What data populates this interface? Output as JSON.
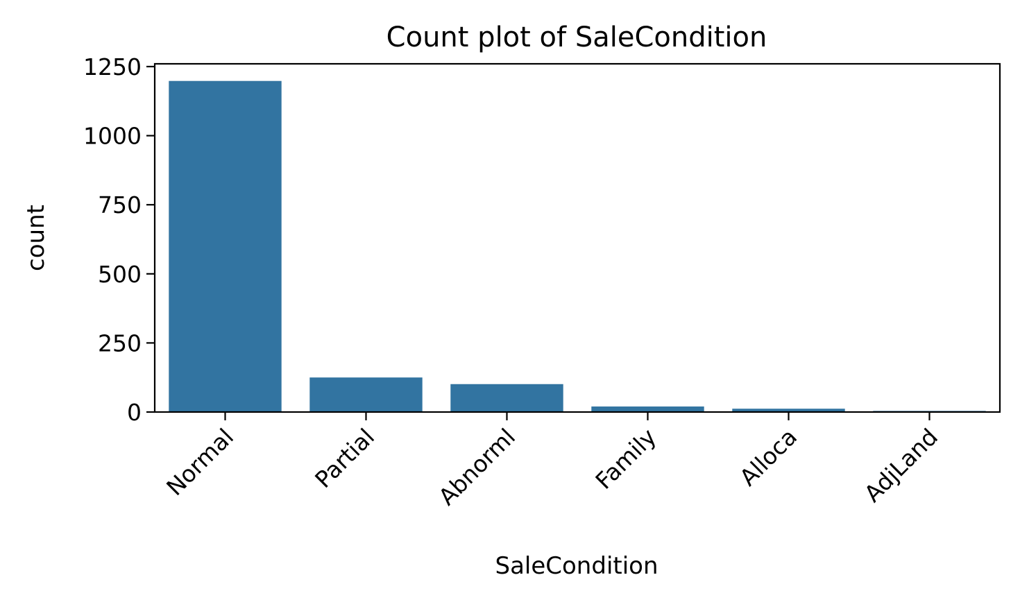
{
  "colors": {
    "bar": "#3274a1",
    "axis": "#000000",
    "background": "#ffffff"
  },
  "chart_data": {
    "type": "bar",
    "title": "Count plot of SaleCondition",
    "xlabel": "SaleCondition",
    "ylabel": "count",
    "categories": [
      "Normal",
      "Partial",
      "Abnorml",
      "Family",
      "Alloca",
      "AdjLand"
    ],
    "values": [
      1198,
      125,
      101,
      20,
      12,
      4
    ],
    "ylim": [
      0,
      1260
    ],
    "yticks": [
      0,
      250,
      500,
      750,
      1000,
      1250
    ],
    "ytick_labels": [
      "0",
      "250",
      "500",
      "750",
      "1000",
      "1250"
    ],
    "xtick_rotation_deg": 45,
    "grid": false,
    "legend": "none"
  }
}
